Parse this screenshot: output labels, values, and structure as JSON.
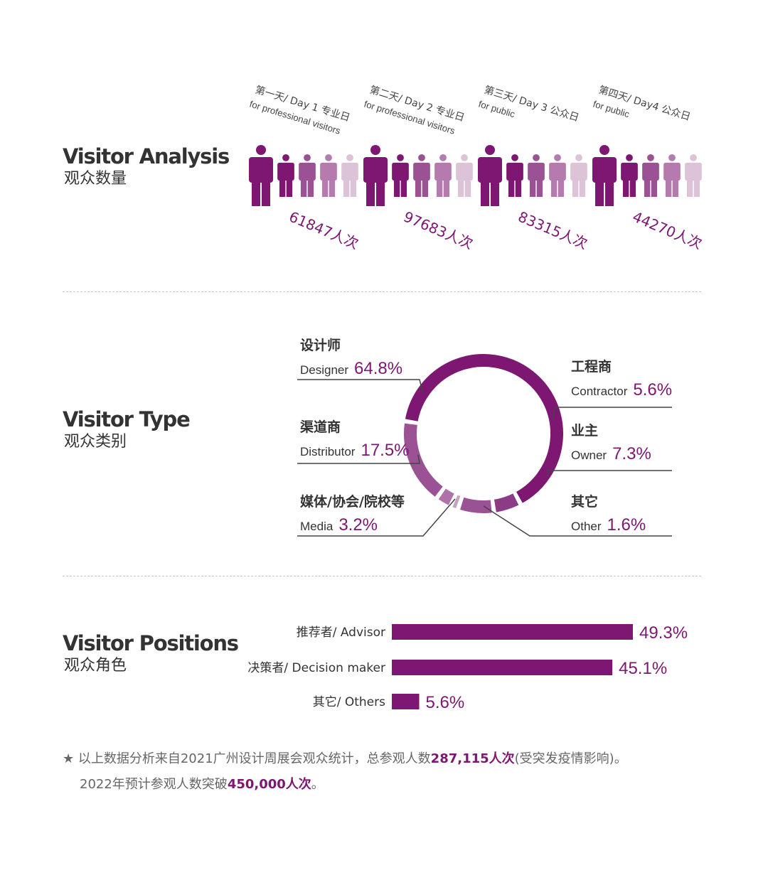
{
  "colors": {
    "primary": "#7d1772",
    "text": "#333333",
    "line": "#444444"
  },
  "sections": {
    "analysis": {
      "title": "Visitor Analysis",
      "subtitle": "观众数量"
    },
    "type": {
      "title": "Visitor Type",
      "subtitle": "观众类别"
    },
    "positions": {
      "title": "Visitor Positions",
      "subtitle": "观众角色"
    }
  },
  "chart_data": [
    {
      "type": "pictograph",
      "days": [
        {
          "line1": "第一天/ Day 1 专业日",
          "line2": "for professional visitors",
          "value": 61847,
          "value_label": "61847人次"
        },
        {
          "line1": "第二天/ Day 2 专业日",
          "line2": "for professional visitors",
          "value": 97683,
          "value_label": "97683人次"
        },
        {
          "line1": "第三天/ Day 3 公众日",
          "line2": "for public",
          "value": 83315,
          "value_label": "83315人次"
        },
        {
          "line1": "第四天/ Day4 公众日",
          "line2": "for public",
          "value": 44270,
          "value_label": "44270人次"
        }
      ]
    },
    {
      "type": "pie",
      "style": "donut",
      "slices": [
        {
          "cn": "设计师",
          "en": "Designer",
          "value": 64.8,
          "label": "64.8%",
          "color": "#7d1772"
        },
        {
          "cn": "工程商",
          "en": "Contractor",
          "value": 5.6,
          "label": "5.6%",
          "color": "#8c3b85"
        },
        {
          "cn": "业主",
          "en": "Owner",
          "value": 7.3,
          "label": "7.3%",
          "color": "#9a5294"
        },
        {
          "cn": "其它",
          "en": "Other",
          "value": 1.6,
          "label": "1.6%",
          "color": "#c7a3c2"
        },
        {
          "cn": "媒体/协会/院校等",
          "en": "Media",
          "value": 3.2,
          "label": "3.2%",
          "color": "#ae72a8"
        },
        {
          "cn": "渠道商",
          "en": "Distributor",
          "value": 17.5,
          "label": "17.5%",
          "color": "#9a5294"
        }
      ]
    },
    {
      "type": "bar",
      "orientation": "horizontal",
      "categories": [
        "推荐者/ Advisor",
        "决策者/ Decision maker",
        "其它/ Others"
      ],
      "values": [
        49.3,
        45.1,
        5.6
      ],
      "labels": [
        "49.3%",
        "45.1%",
        "5.6%"
      ]
    }
  ],
  "footnote": {
    "line1_pre": "以上数据分析来自2021广州设计周展会观众统计，总参观人数",
    "line1_bold": "287,115人次",
    "line1_post": "(受突发疫情影响)。",
    "line2_pre": "2022年预计参观人数突破",
    "line2_bold": "450,000人次",
    "line2_post": "。"
  }
}
